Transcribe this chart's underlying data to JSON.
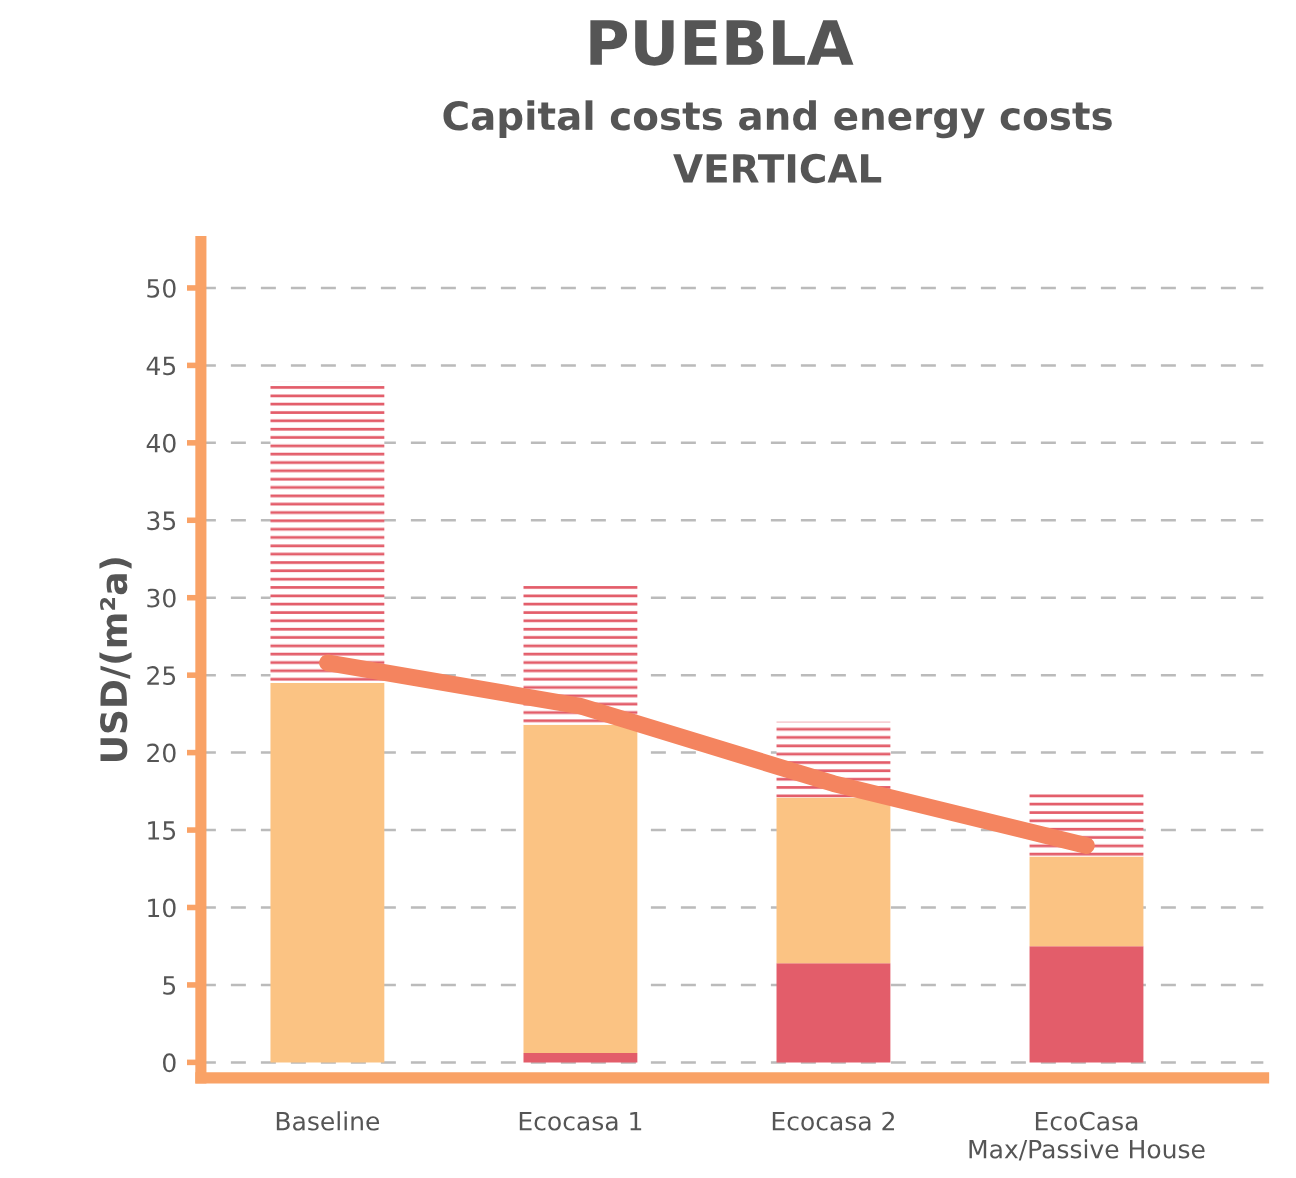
{
  "chart_data": {
    "type": "bar",
    "title": "PUEBLA",
    "subtitle": "Capital costs and energy costs\nVERTICAL",
    "ylabel": "USD/(m²a)",
    "categories": [
      "Baseline",
      "Ecocasa 1",
      "Ecocasa 2",
      "EcoCasa\nMax/Passive House"
    ],
    "stacked": true,
    "series": [
      {
        "color": "#e35d6a",
        "values": [
          0,
          0.6,
          6.4,
          7.5
        ]
      },
      {
        "color": "#fbc383",
        "values": [
          24.5,
          21.2,
          10.7,
          5.8
        ]
      },
      {
        "color": "#e35d6a",
        "values": [
          19.5,
          9.2,
          4.9,
          4.1
        ],
        "line_style": "dashed"
      },
      {
        "type": "line",
        "color": "#f4845f",
        "values": [
          25.8,
          23,
          18,
          14
        ]
      }
    ],
    "ylim": [
      -1,
      53
    ],
    "yticks": [
      0,
      5,
      10,
      15,
      20,
      25,
      30,
      35,
      40,
      45,
      50
    ],
    "grid": "y",
    "marker": "none"
  }
}
